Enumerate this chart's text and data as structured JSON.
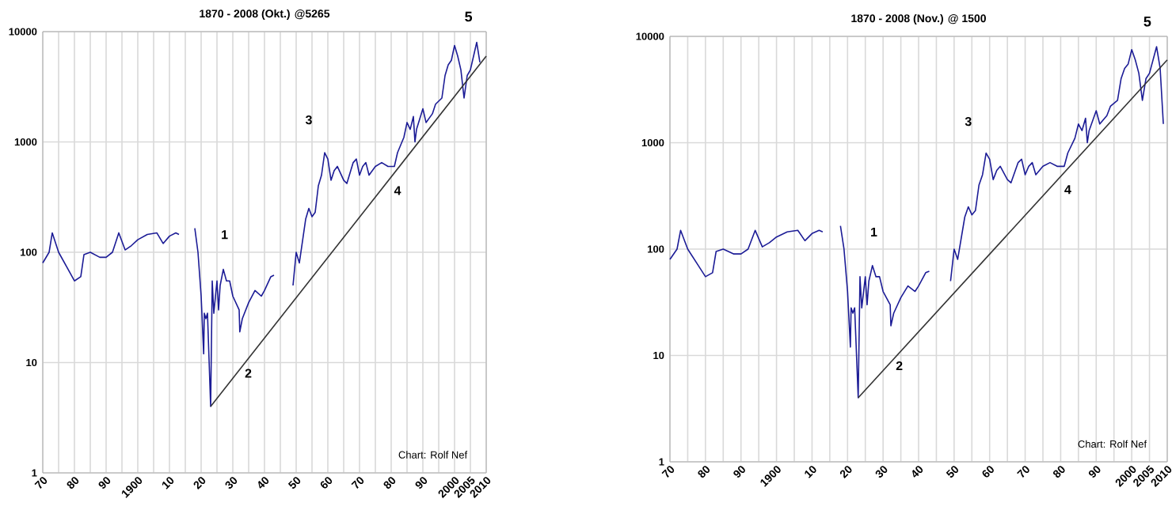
{
  "chart_data": [
    {
      "type": "line",
      "title": "1870 - 2008 (Okt.) @5265",
      "log": "y",
      "grid": true,
      "marker": "none",
      "line_style": "solid",
      "xlim": [
        1870,
        2010
      ],
      "ylim": [
        1,
        10000
      ],
      "xticks": [
        {
          "value": 1870,
          "label": "70"
        },
        {
          "value": 1875,
          "label": null
        },
        {
          "value": 1880,
          "label": "80"
        },
        {
          "value": 1885,
          "label": null
        },
        {
          "value": 1890,
          "label": "90"
        },
        {
          "value": 1895,
          "label": null
        },
        {
          "value": 1900,
          "label": "1900"
        },
        {
          "value": 1905,
          "label": null
        },
        {
          "value": 1910,
          "label": "10"
        },
        {
          "value": 1915,
          "label": null
        },
        {
          "value": 1920,
          "label": "20"
        },
        {
          "value": 1925,
          "label": null
        },
        {
          "value": 1930,
          "label": "30"
        },
        {
          "value": 1935,
          "label": null
        },
        {
          "value": 1940,
          "label": "40"
        },
        {
          "value": 1945,
          "label": null
        },
        {
          "value": 1950,
          "label": "50"
        },
        {
          "value": 1955,
          "label": null
        },
        {
          "value": 1960,
          "label": "60"
        },
        {
          "value": 1965,
          "label": null
        },
        {
          "value": 1970,
          "label": "70"
        },
        {
          "value": 1975,
          "label": null
        },
        {
          "value": 1980,
          "label": "80"
        },
        {
          "value": 1985,
          "label": null
        },
        {
          "value": 1990,
          "label": "90"
        },
        {
          "value": 1995,
          "label": null
        },
        {
          "value": 2000,
          "label": "2000"
        },
        {
          "value": 2005,
          "label": "2005"
        },
        {
          "value": 2010,
          "label": "2010"
        }
      ],
      "yticks": [
        1,
        10,
        100,
        1000,
        10000
      ],
      "series": [
        {
          "color": "#1c1c96",
          "x": [
            1870,
            1872,
            1873,
            1875,
            1878,
            1880,
            1882,
            1883,
            1885,
            1888,
            1890,
            1892,
            1894,
            1896,
            1898,
            1900,
            1903,
            1906,
            1908,
            1910,
            1912,
            1913,
            1915,
            1918,
            1919,
            1920,
            1920.8,
            1921,
            1921.5,
            1922,
            1923,
            1923.5,
            1924,
            1925,
            1925.5,
            1926,
            1927,
            1928,
            1929,
            1930,
            1932,
            1932.2,
            1933,
            1935,
            1937,
            1939,
            1940,
            1942,
            1943,
            1946,
            1949,
            1950,
            1951,
            1953,
            1954,
            1955,
            1956,
            1957,
            1958,
            1959,
            1960,
            1961,
            1962,
            1963,
            1965,
            1966,
            1968,
            1969,
            1970,
            1971,
            1972,
            1973,
            1975,
            1977,
            1979,
            1981,
            1982,
            1984,
            1985,
            1986,
            1987,
            1987.5,
            1988,
            1990,
            1991,
            1993,
            1994,
            1996,
            1997,
            1998,
            1999,
            2000,
            2001,
            2002,
            2003,
            2004,
            2005,
            2006,
            2007,
            2008
          ],
          "values": [
            80,
            100,
            150,
            100,
            70,
            55,
            60,
            95,
            100,
            90,
            90,
            100,
            150,
            105,
            115,
            130,
            145,
            150,
            120,
            140,
            150,
            145,
            null,
            165,
            100,
            40,
            12,
            28,
            25,
            28,
            4,
            55,
            28,
            55,
            30,
            50,
            70,
            55,
            55,
            40,
            30,
            19,
            25,
            35,
            45,
            40,
            45,
            60,
            62,
            null,
            50,
            100,
            80,
            200,
            250,
            210,
            230,
            400,
            500,
            800,
            700,
            450,
            550,
            600,
            450,
            420,
            650,
            700,
            500,
            600,
            650,
            500,
            600,
            650,
            600,
            600,
            800,
            1100,
            1500,
            1300,
            1700,
            1000,
            1300,
            2000,
            1500,
            1800,
            2200,
            2500,
            4000,
            5000,
            5500,
            7500,
            6000,
            4500,
            2500,
            4000,
            4500,
            6000,
            8000,
            5265
          ]
        },
        {
          "color": "#333333",
          "x": [
            1923,
            2010
          ],
          "values": [
            4,
            6000
          ]
        }
      ],
      "annotations": [
        "5",
        "Chart: Rolf Nef",
        "1",
        "3",
        "4",
        {
          "text": "2",
          "x": 1932,
          "y": 8
        }
      ]
    },
    {
      "type": "line",
      "title": "1870 - 2008 (Nov.) @ 1500",
      "log": "y",
      "grid": true,
      "marker": "none",
      "line_style": "solid",
      "xlim": [
        1870,
        2010
      ],
      "ylim": [
        1,
        10000
      ],
      "xticks": [
        {
          "value": 1870,
          "label": "70"
        },
        {
          "value": 1875,
          "label": null
        },
        {
          "value": 1880,
          "label": "80"
        },
        {
          "value": 1885,
          "label": null
        },
        {
          "value": 1890,
          "label": "90"
        },
        {
          "value": 1895,
          "label": null
        },
        {
          "value": 1900,
          "label": "1900"
        },
        {
          "value": 1905,
          "label": null
        },
        {
          "value": 1910,
          "label": "10"
        },
        {
          "value": 1915,
          "label": null
        },
        {
          "value": 1920,
          "label": "20"
        },
        {
          "value": 1925,
          "label": null
        },
        {
          "value": 1930,
          "label": "30"
        },
        {
          "value": 1935,
          "label": null
        },
        {
          "value": 1940,
          "label": "40"
        },
        {
          "value": 1945,
          "label": null
        },
        {
          "value": 1950,
          "label": "50"
        },
        {
          "value": 1955,
          "label": null
        },
        {
          "value": 1960,
          "label": "60"
        },
        {
          "value": 1965,
          "label": null
        },
        {
          "value": 1970,
          "label": "70"
        },
        {
          "value": 1975,
          "label": null
        },
        {
          "value": 1980,
          "label": "80"
        },
        {
          "value": 1985,
          "label": null
        },
        {
          "value": 1990,
          "label": "90"
        },
        {
          "value": 1995,
          "label": null
        },
        {
          "value": 2000,
          "label": "2000"
        },
        {
          "value": 2005,
          "label": "2005"
        },
        {
          "value": 2010,
          "label": "2010"
        }
      ],
      "yticks": [
        1,
        10,
        100,
        1000,
        10000
      ],
      "series": [
        {
          "color": "#1c1c96",
          "x": [
            1870,
            1872,
            1873,
            1875,
            1878,
            1880,
            1882,
            1883,
            1885,
            1888,
            1890,
            1892,
            1894,
            1896,
            1898,
            1900,
            1903,
            1906,
            1908,
            1910,
            1912,
            1913,
            1915,
            1918,
            1919,
            1920,
            1920.8,
            1921,
            1921.5,
            1922,
            1923,
            1923.5,
            1924,
            1925,
            1925.5,
            1926,
            1927,
            1928,
            1929,
            1930,
            1932,
            1932.2,
            1933,
            1935,
            1937,
            1939,
            1940,
            1942,
            1943,
            1946,
            1949,
            1950,
            1951,
            1953,
            1954,
            1955,
            1956,
            1957,
            1958,
            1959,
            1960,
            1961,
            1962,
            1963,
            1965,
            1966,
            1968,
            1969,
            1970,
            1971,
            1972,
            1973,
            1975,
            1977,
            1979,
            1981,
            1982,
            1984,
            1985,
            1986,
            1987,
            1987.5,
            1988,
            1990,
            1991,
            1993,
            1994,
            1996,
            1997,
            1998,
            1999,
            2000,
            2001,
            2002,
            2003,
            2004,
            2005,
            2006,
            2007,
            2008,
            2008.9
          ],
          "values": [
            80,
            100,
            150,
            100,
            70,
            55,
            60,
            95,
            100,
            90,
            90,
            100,
            150,
            105,
            115,
            130,
            145,
            150,
            120,
            140,
            150,
            145,
            null,
            165,
            100,
            40,
            12,
            28,
            25,
            28,
            4,
            55,
            28,
            55,
            30,
            50,
            70,
            55,
            55,
            40,
            30,
            19,
            25,
            35,
            45,
            40,
            45,
            60,
            62,
            null,
            50,
            100,
            80,
            200,
            250,
            210,
            230,
            400,
            500,
            800,
            700,
            450,
            550,
            600,
            450,
            420,
            650,
            700,
            500,
            600,
            650,
            500,
            600,
            650,
            600,
            600,
            800,
            1100,
            1500,
            1300,
            1700,
            1000,
            1300,
            2000,
            1500,
            1800,
            2200,
            2500,
            4000,
            5000,
            5500,
            7500,
            6000,
            4500,
            2500,
            4000,
            4500,
            6000,
            8000,
            5000,
            1500
          ]
        },
        {
          "color": "#333333",
          "x": [
            1923,
            2010
          ],
          "values": [
            4,
            6000
          ]
        }
      ],
      "annotations": [
        "5",
        "Chart: Rolf Nef",
        "1",
        "3",
        "4",
        {
          "text": "2",
          "x": 1932,
          "y": 8
        }
      ]
    }
  ]
}
